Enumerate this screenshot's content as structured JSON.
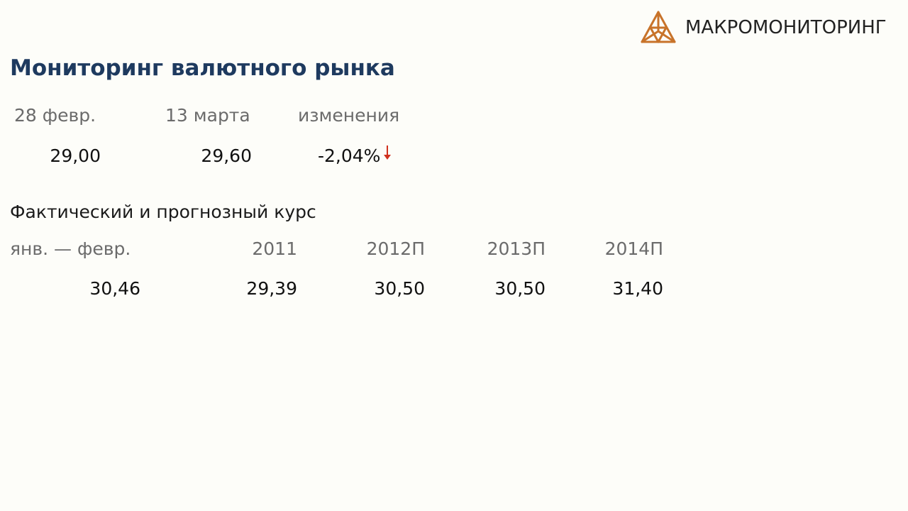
{
  "brand": {
    "name": "МАКРОМОНИТОРИНГ",
    "accent_color": "#c8732a"
  },
  "title": "Мониторинг валютного рынка",
  "change_table": {
    "headers": [
      "28 февр.",
      "13 марта",
      "изменения"
    ],
    "values": [
      "29,00",
      "29,60",
      "-2,04%"
    ],
    "direction": "down",
    "direction_color": "#d0311e"
  },
  "forecast": {
    "title": "Фактический и прогнозный курс",
    "headers": [
      "янв. — февр.",
      "2011",
      "2012П",
      "2013П",
      "2014П"
    ],
    "values": [
      "30,46",
      "29,39",
      "30,50",
      "30,50",
      "31,40"
    ]
  },
  "colors": {
    "title": "#1e3a5f",
    "header_text": "#6b6b6b",
    "value_text": "#111111",
    "background": "#fdfdf9"
  }
}
